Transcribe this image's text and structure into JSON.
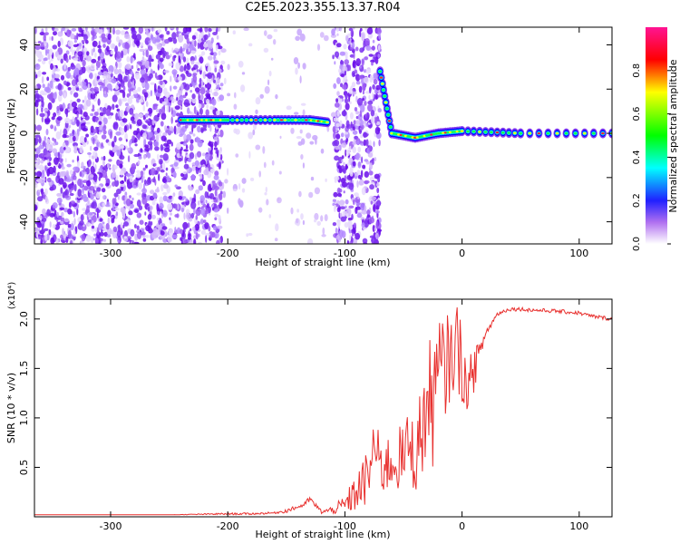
{
  "title": "C2E5.2023.355.13.37.R04",
  "chart_data": [
    {
      "type": "heatmap",
      "xlabel": "Height of straight line (km)",
      "ylabel": "Frequency (Hz)",
      "xlim": [
        -365,
        128
      ],
      "ylim": [
        -50,
        48
      ],
      "xticks": [
        -300,
        -200,
        -100,
        0,
        100
      ],
      "yticks": [
        -40,
        -20,
        0,
        20,
        40
      ],
      "noise_regions": [
        {
          "x_from": -365,
          "x_to": -205,
          "density": "high"
        },
        {
          "x_from": -205,
          "x_to": -110,
          "density": "sparse"
        },
        {
          "x_from": -110,
          "x_to": -70,
          "density": "high"
        },
        {
          "x_from": -70,
          "x_to": 128,
          "density": "none"
        }
      ],
      "signal_track": [
        {
          "x": -240,
          "y": 6
        },
        {
          "x": -220,
          "y": 6
        },
        {
          "x": -200,
          "y": 6
        },
        {
          "x": -160,
          "y": 6
        },
        {
          "x": -130,
          "y": 6
        },
        {
          "x": -115,
          "y": 5
        },
        {
          "x": -70,
          "y": 28
        },
        {
          "x": -60,
          "y": 0
        },
        {
          "x": -40,
          "y": -2
        },
        {
          "x": -20,
          "y": 0
        },
        {
          "x": 0,
          "y": 1
        },
        {
          "x": 50,
          "y": 0
        },
        {
          "x": 128,
          "y": 0
        }
      ],
      "colorbar": {
        "label": "Normalized spectral amplitude",
        "range": [
          0.0,
          1.0
        ],
        "ticks": [
          0.0,
          0.2,
          0.4,
          0.6,
          0.8
        ],
        "colors": [
          "#ffffff",
          "#8a2be2",
          "#0000ff",
          "#00ffff",
          "#00ff00",
          "#ffff00",
          "#ff0000",
          "#ff1493"
        ]
      }
    },
    {
      "type": "line",
      "xlabel": "Height of straight line (km)",
      "ylabel": "SNR (10 * v/v)",
      "scale_label": "(x10⁴)",
      "xlim": [
        -365,
        128
      ],
      "ylim": [
        0,
        2.2
      ],
      "xticks": [
        -300,
        -200,
        -100,
        0,
        100
      ],
      "yticks": [
        0.5,
        1.0,
        1.5,
        2.0
      ],
      "series": [
        {
          "color": "#e8302e",
          "x": [
            -365,
            -300,
            -250,
            -200,
            -180,
            -160,
            -150,
            -140,
            -135,
            -130,
            -120,
            -110,
            -100,
            -90,
            -80,
            -75,
            -70,
            -60,
            -50,
            -45,
            -40,
            -30,
            -25,
            -20,
            -15,
            -10,
            -5,
            0,
            5,
            10,
            15,
            20,
            30,
            40,
            50,
            60,
            80,
            100,
            110,
            128
          ],
          "y": [
            0.02,
            0.02,
            0.02,
            0.03,
            0.03,
            0.04,
            0.06,
            0.1,
            0.12,
            0.18,
            0.05,
            0.07,
            0.12,
            0.25,
            0.4,
            0.75,
            0.5,
            0.55,
            0.6,
            0.75,
            0.6,
            1.1,
            1.2,
            1.35,
            1.5,
            1.6,
            1.75,
            1.55,
            1.25,
            1.55,
            1.65,
            1.85,
            2.05,
            2.1,
            2.1,
            2.09,
            2.08,
            2.06,
            2.03,
            2.0
          ],
          "spread": [
            0,
            0,
            0,
            0.01,
            0.01,
            0.01,
            0.02,
            0.02,
            0.02,
            0.03,
            0.02,
            0.04,
            0.1,
            0.2,
            0.3,
            0.3,
            0.3,
            0.3,
            0.35,
            0.35,
            0.4,
            0.6,
            0.7,
            0.7,
            0.6,
            0.4,
            0.5,
            0.4,
            0.2,
            0.3,
            0.1,
            0.05,
            0.02,
            0.02,
            0.02,
            0.02,
            0.02,
            0.02,
            0.02,
            0.02
          ]
        }
      ]
    }
  ]
}
